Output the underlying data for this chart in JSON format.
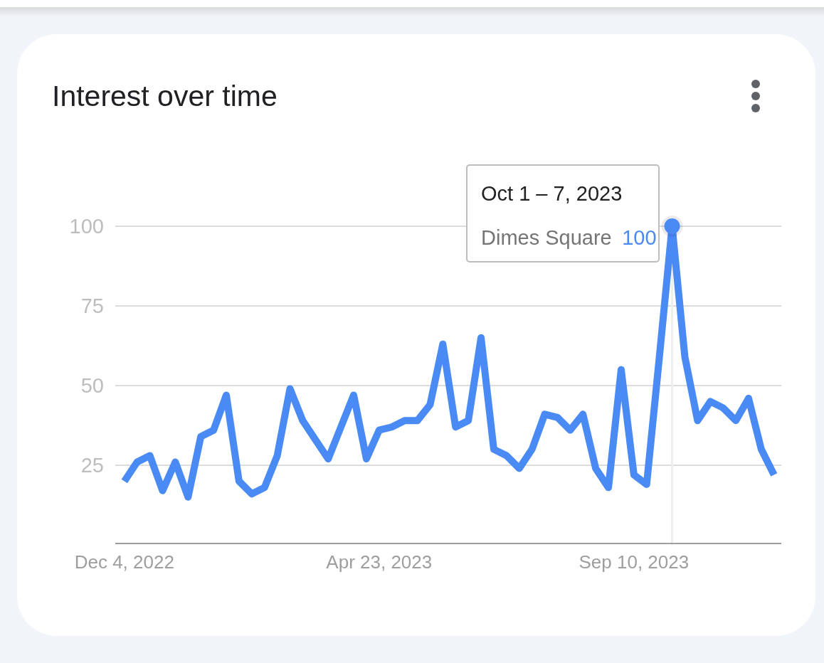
{
  "chart_data": {
    "type": "line",
    "title": "Interest over time",
    "x": [
      "2022-12-04",
      "2022-12-11",
      "2022-12-18",
      "2022-12-25",
      "2023-01-01",
      "2023-01-08",
      "2023-01-15",
      "2023-01-22",
      "2023-01-29",
      "2023-02-05",
      "2023-02-12",
      "2023-02-19",
      "2023-02-26",
      "2023-03-05",
      "2023-03-12",
      "2023-03-19",
      "2023-03-26",
      "2023-04-02",
      "2023-04-09",
      "2023-04-16",
      "2023-04-23",
      "2023-04-30",
      "2023-05-07",
      "2023-05-14",
      "2023-05-21",
      "2023-05-28",
      "2023-06-04",
      "2023-06-11",
      "2023-06-18",
      "2023-06-25",
      "2023-07-02",
      "2023-07-09",
      "2023-07-16",
      "2023-07-23",
      "2023-07-30",
      "2023-08-06",
      "2023-08-13",
      "2023-08-20",
      "2023-08-27",
      "2023-09-03",
      "2023-09-10",
      "2023-09-17",
      "2023-09-24",
      "2023-10-01",
      "2023-10-08",
      "2023-10-15",
      "2023-10-22",
      "2023-10-29",
      "2023-11-05",
      "2023-11-12",
      "2023-11-19",
      "2023-11-26"
    ],
    "series": [
      {
        "name": "Dimes Square",
        "color": "#4a8af4",
        "values": [
          20,
          26,
          28,
          17,
          26,
          15,
          34,
          36,
          47,
          20,
          16,
          18,
          28,
          49,
          39,
          33,
          27,
          37,
          47,
          27,
          36,
          37,
          39,
          39,
          44,
          63,
          37,
          39,
          65,
          30,
          28,
          24,
          30,
          41,
          40,
          36,
          41,
          24,
          18,
          55,
          22,
          19,
          59,
          100,
          59,
          39,
          45,
          43,
          39,
          46,
          30,
          22
        ],
        "value_labels": [
          null,
          null,
          null,
          null,
          null,
          null,
          null,
          null,
          null,
          null,
          null,
          null,
          null,
          null,
          null,
          null,
          null,
          null,
          null,
          null,
          null,
          null,
          null,
          null,
          null,
          null,
          null,
          null,
          null,
          null,
          null,
          null,
          null,
          null,
          null,
          null,
          null,
          null,
          null,
          null,
          null,
          null,
          null,
          "100",
          null,
          null,
          null,
          null,
          null,
          null,
          null,
          null
        ]
      }
    ],
    "xlim": [
      "2022-11-29",
      "2023-11-30"
    ],
    "xticks": [
      {
        "value": "2022-12-04",
        "label": "Dec 4, 2022"
      },
      {
        "value": "2023-04-23",
        "label": "Apr 23, 2023"
      },
      {
        "value": "2023-09-10",
        "label": "Sep 10, 2023"
      }
    ],
    "ylim": [
      0,
      100
    ],
    "yticks": [
      25,
      50,
      75,
      100
    ],
    "grid": "y",
    "ref_lines": [
      {
        "axis": "x",
        "value": "2023-10-01",
        "color": "#eeeeee"
      }
    ],
    "annotations": [
      {
        "text": "Oct 1 – 7, 2023",
        "x": "2023-10-01",
        "y": 100
      }
    ]
  }
}
